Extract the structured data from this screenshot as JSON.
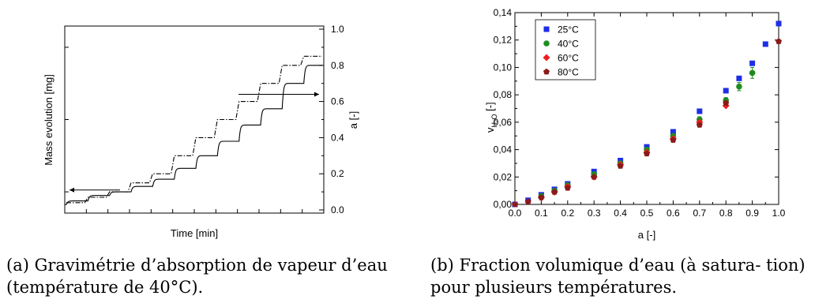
{
  "captions": {
    "a": "(a) Gravimétrie d’absorption de vapeur d’eau (température de 40°C).",
    "b": "(b) Fraction volumique d’eau (à satura- tion) pour plusieurs températures."
  },
  "chart_data": [
    {
      "type": "line",
      "xlabel": "Time [min]",
      "ylabel_left": "Mass evolution [mg]",
      "ylabel_right": "a [-]",
      "right_axis": {
        "ylim": [
          0.0,
          1.0
        ],
        "ticks": [
          "0.0",
          "0.2",
          "0.4",
          "0.6",
          "0.8",
          "1.0"
        ]
      },
      "series": [
        {
          "style": "dash-dot",
          "axis": "right",
          "steps": [
            0.04,
            0.07,
            0.1,
            0.15,
            0.2,
            0.3,
            0.4,
            0.5,
            0.6,
            0.7,
            0.8,
            0.85
          ]
        },
        {
          "style": "solid",
          "axis": "left",
          "levels": [
            0.05,
            0.08,
            0.1,
            0.13,
            0.17,
            0.23,
            0.3,
            0.38,
            0.47,
            0.56,
            0.7,
            0.8
          ]
        }
      ],
      "arrows": [
        {
          "direction": "left",
          "points_to": "left-axis",
          "y": 0.11
        },
        {
          "direction": "right",
          "points_to": "right-axis",
          "y": 0.64
        }
      ]
    },
    {
      "type": "scatter",
      "xlabel": "a [-]",
      "ylabel": "v",
      "ylabel_sub": "H₂O",
      "ylabel_suffix": " [-]",
      "xlim": [
        0.0,
        1.0
      ],
      "ylim": [
        0.0,
        0.14
      ],
      "xticks": [
        "0.0",
        "0.1",
        "0.2",
        "0.3",
        "0.4",
        "0.5",
        "0.6",
        "0.7",
        "0.8",
        "0.9",
        "1.0"
      ],
      "yticks": [
        "0,00",
        "0,02",
        "0,04",
        "0,06",
        "0,08",
        "0,10",
        "0,12",
        "0,14"
      ],
      "legend_position": "top-left",
      "series": [
        {
          "name": "25°C",
          "color": "#1f2ee6",
          "marker": "square",
          "x": [
            0.0,
            0.05,
            0.1,
            0.15,
            0.2,
            0.3,
            0.4,
            0.5,
            0.6,
            0.7,
            0.8,
            0.85,
            0.9,
            0.95,
            1.0
          ],
          "y": [
            0.0,
            0.003,
            0.007,
            0.011,
            0.015,
            0.024,
            0.032,
            0.042,
            0.053,
            0.068,
            0.083,
            0.092,
            0.103,
            0.117,
            0.132
          ]
        },
        {
          "name": "40°C",
          "color": "#1e8c1e",
          "marker": "circle",
          "x": [
            0.1,
            0.15,
            0.2,
            0.3,
            0.4,
            0.5,
            0.6,
            0.7,
            0.8,
            0.85,
            0.9
          ],
          "y": [
            0.006,
            0.01,
            0.014,
            0.022,
            0.03,
            0.04,
            0.05,
            0.062,
            0.076,
            0.086,
            0.096
          ],
          "error": [
            0.001,
            0.001,
            0.001,
            0.001,
            0.001,
            0.001,
            0.001,
            0.002,
            0.002,
            0.003,
            0.004
          ]
        },
        {
          "name": "60°C",
          "color": "#f01e1e",
          "marker": "diamond",
          "x": [
            0.1,
            0.15,
            0.2,
            0.3,
            0.4,
            0.5,
            0.6,
            0.7,
            0.8
          ],
          "y": [
            0.005,
            0.009,
            0.013,
            0.02,
            0.029,
            0.038,
            0.048,
            0.06,
            0.072
          ]
        },
        {
          "name": "80°C",
          "color": "#8b1a1a",
          "marker": "pentagon",
          "x": [
            0.0,
            0.05,
            0.1,
            0.15,
            0.2,
            0.3,
            0.4,
            0.5,
            0.6,
            0.7,
            0.8,
            1.0
          ],
          "y": [
            0.0,
            0.002,
            0.005,
            0.009,
            0.012,
            0.02,
            0.028,
            0.037,
            0.047,
            0.058,
            0.074,
            0.119
          ]
        }
      ]
    }
  ]
}
